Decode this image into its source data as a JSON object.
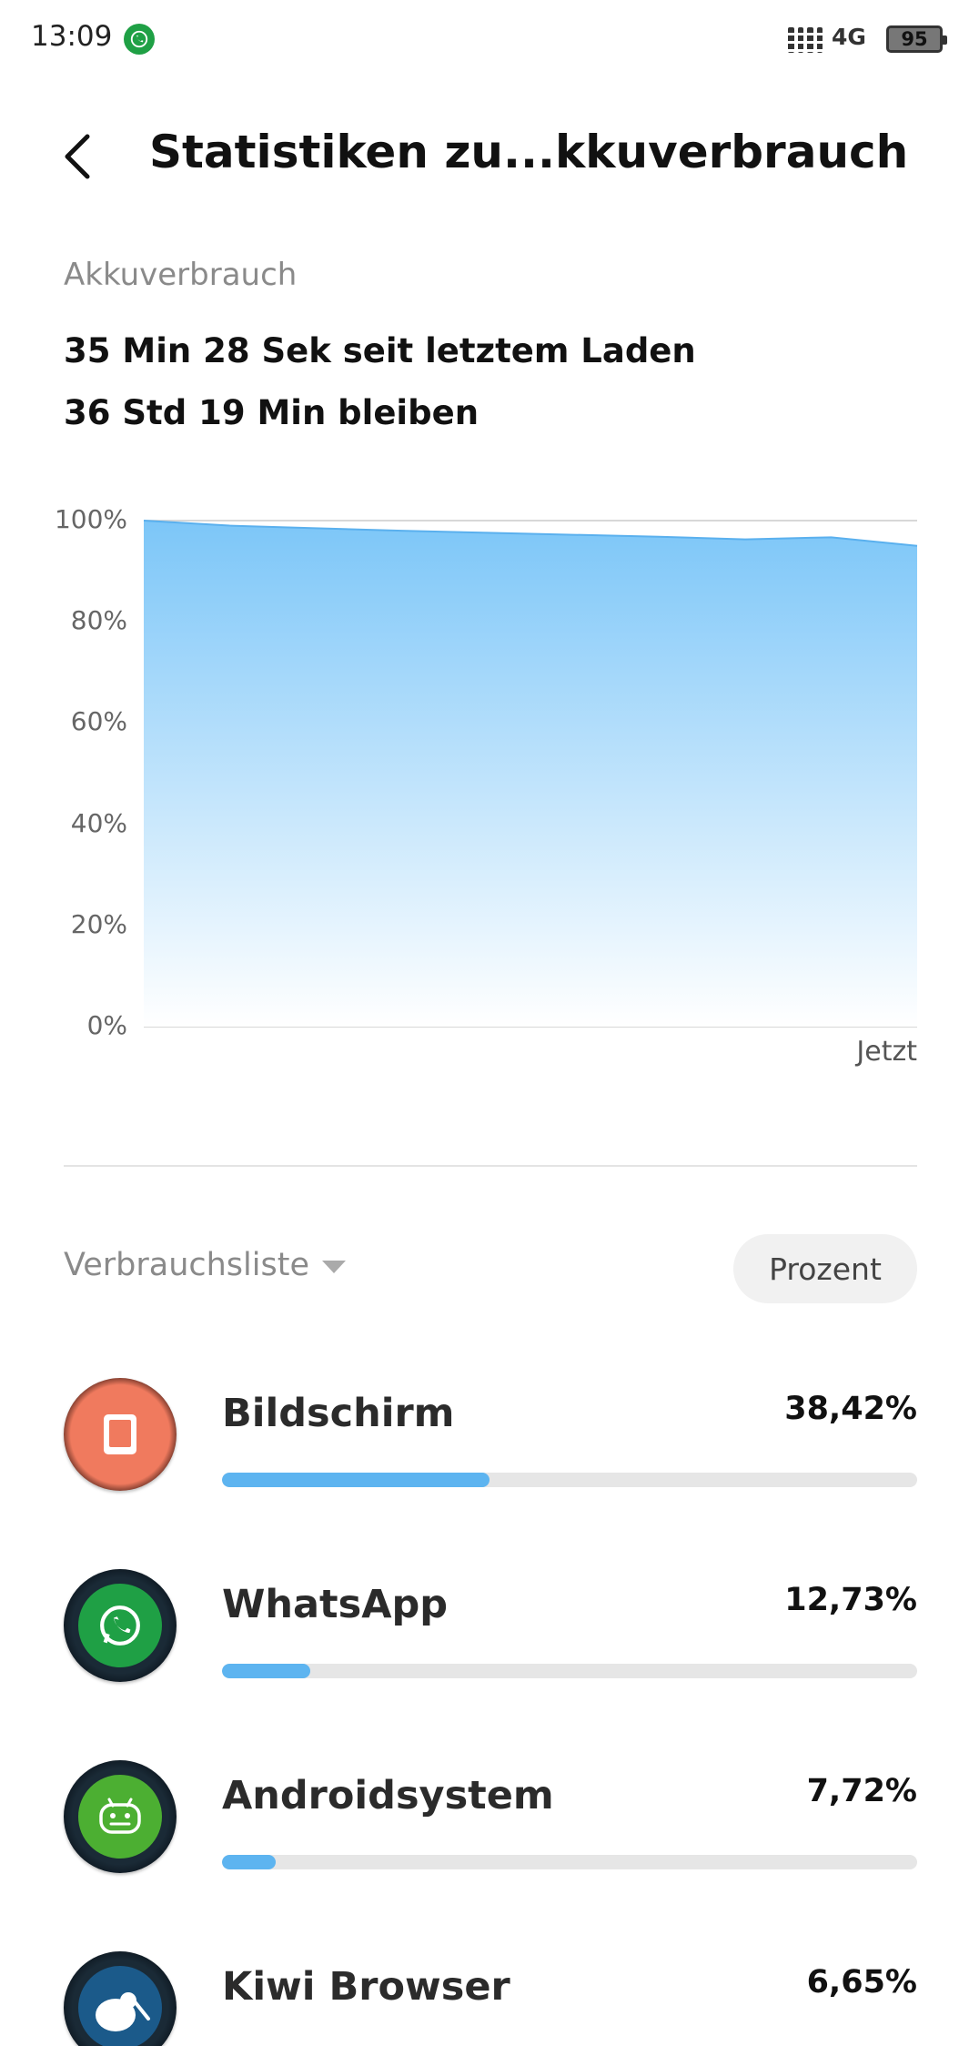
{
  "status_bar": {
    "time": "13:09",
    "notification_icon": "whatsapp-icon",
    "network": "4G",
    "battery": "95"
  },
  "header": {
    "back_icon": "chevron-left-icon",
    "title": "Statistiken zu...kkuverbrauch"
  },
  "usage": {
    "section_label": "Akkuverbrauch",
    "since_last_charge": "35 Min 28 Sek seit letztem Laden",
    "remaining": "36 Std 19 Min bleiben"
  },
  "chart_data": {
    "type": "area",
    "y_ticks": [
      "100%",
      "80%",
      "60%",
      "40%",
      "20%",
      "0%"
    ],
    "x_end_label": "Jetzt",
    "ylim": [
      0,
      100
    ],
    "values": [
      100,
      99,
      98.5,
      98,
      97.6,
      97.2,
      96.8,
      96.3,
      96.7,
      95
    ],
    "colors": {
      "line": "#5ab0ee",
      "fill_top": "#7cc6f8",
      "fill_bottom": "#ffffff"
    },
    "grid": true
  },
  "list": {
    "dropdown_label": "Verbrauchsliste",
    "mode_button": "Prozent",
    "items": [
      {
        "name": "Bildschirm",
        "percent": "38,42%",
        "value": 38.42,
        "icon": "screen-icon",
        "color": "#f07a5e"
      },
      {
        "name": "WhatsApp",
        "percent": "12,73%",
        "value": 12.73,
        "icon": "whatsapp-icon",
        "color": "#1fa045"
      },
      {
        "name": "Androidsystem",
        "percent": "7,72%",
        "value": 7.72,
        "icon": "android-icon",
        "color": "#4caf32"
      },
      {
        "name": "Kiwi Browser",
        "percent": "6,65%",
        "value": 6.65,
        "icon": "kiwi-browser-icon",
        "color": "#1b5a8a"
      }
    ],
    "bar_max": 100
  }
}
